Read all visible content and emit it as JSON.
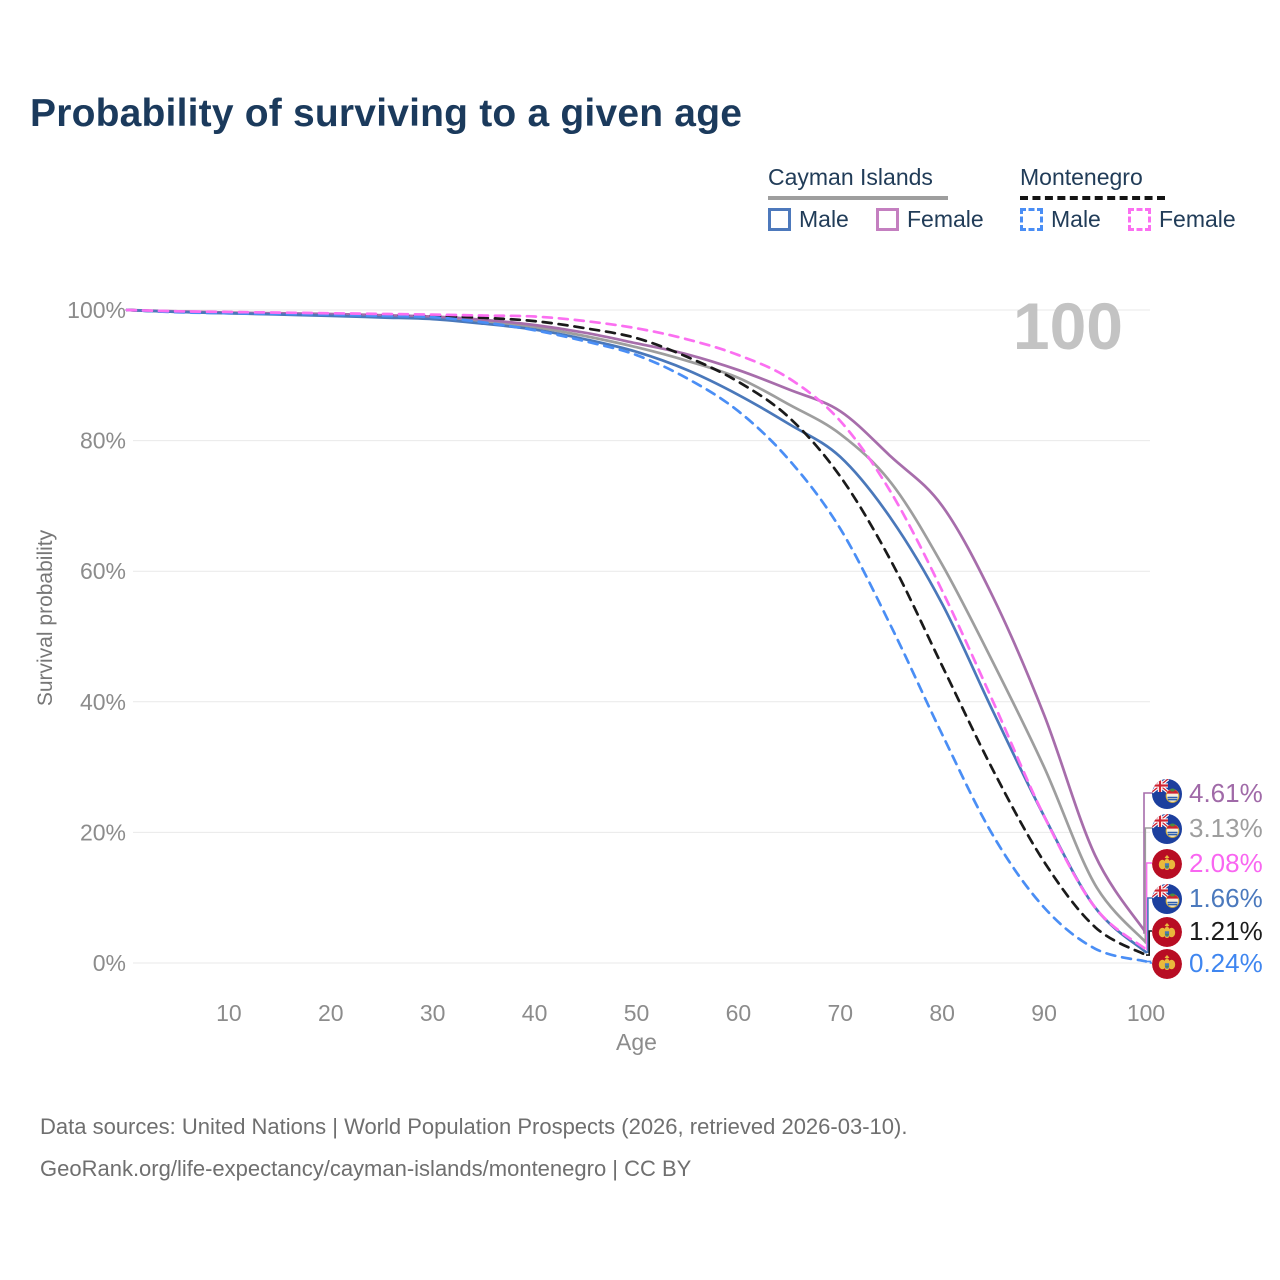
{
  "title": "Probability of surviving to a given age",
  "watermark": "100",
  "legend": {
    "groups": [
      {
        "name": "Cayman Islands",
        "line_style": "solid",
        "underline_color": "#9e9e9e",
        "items": [
          {
            "label": "Male",
            "color": "#4d79bc"
          },
          {
            "label": "Female",
            "color": "#c47fc0"
          }
        ]
      },
      {
        "name": "Montenegro",
        "line_style": "dashed",
        "underline_color": "#141414",
        "items": [
          {
            "label": "Male",
            "color": "#4a8ef5"
          },
          {
            "label": "Female",
            "color": "#fb6ff1"
          }
        ]
      }
    ]
  },
  "chart_data": {
    "type": "line",
    "title": "Probability of surviving to a given age",
    "xlabel": "Age",
    "ylabel": "Survival probability",
    "xlim": [
      0,
      100
    ],
    "ylim": [
      0,
      100
    ],
    "x_ticks": [
      10,
      20,
      30,
      40,
      50,
      60,
      70,
      80,
      90,
      100
    ],
    "y_ticks": [
      0,
      20,
      40,
      60,
      80,
      100
    ],
    "y_tick_suffix": "%",
    "grid": "horizontal",
    "legend_position": "top-right",
    "hover_age": "100",
    "x": [
      0,
      5,
      10,
      15,
      20,
      25,
      30,
      35,
      40,
      45,
      50,
      55,
      60,
      65,
      70,
      75,
      80,
      85,
      90,
      95,
      100
    ],
    "series": [
      {
        "name": "Cayman Islands — Female",
        "country": "Cayman Islands",
        "sex": "Female",
        "color": "#a76dab",
        "label_color": "#a06aa8",
        "dash": false,
        "flag": "cayman-islands",
        "end_label": "4.61%",
        "end_value": 4.61,
        "values": [
          100,
          99.8,
          99.6,
          99.5,
          99.4,
          99.2,
          99.0,
          98.5,
          97.7,
          96.5,
          94.9,
          93.2,
          90.8,
          87.8,
          84.5,
          77.5,
          70,
          56,
          38,
          16.5,
          4.61
        ]
      },
      {
        "name": "Cayman Islands — Both sexes",
        "country": "Cayman Islands",
        "sex": "Both",
        "color": "#9e9e9e",
        "label_color": "#9e9e9e",
        "dash": false,
        "flag": "cayman-islands",
        "end_label": "3.13%",
        "end_value": 3.13,
        "values": [
          100,
          99.7,
          99.5,
          99.35,
          99.2,
          99.0,
          98.8,
          98.2,
          97.4,
          96.0,
          94.3,
          92.2,
          89.6,
          85.5,
          81,
          73.5,
          61,
          46,
          30,
          12,
          3.13
        ]
      },
      {
        "name": "Montenegro — Female",
        "country": "Montenegro",
        "sex": "Female",
        "color": "#fb6ff1",
        "label_color": "#f966f1",
        "dash": true,
        "flag": "montenegro",
        "end_label": "2.08%",
        "end_value": 2.08,
        "values": [
          100,
          99.8,
          99.7,
          99.6,
          99.5,
          99.4,
          99.3,
          99.15,
          99.0,
          98.3,
          97.2,
          95.5,
          93.1,
          89.5,
          83,
          72,
          57,
          40,
          22.5,
          8.5,
          2.08
        ]
      },
      {
        "name": "Cayman Islands — Male",
        "country": "Cayman Islands",
        "sex": "Male",
        "color": "#4a78ba",
        "label_color": "#4b79bd",
        "dash": false,
        "flag": "cayman-islands",
        "end_label": "1.66%",
        "end_value": 1.66,
        "values": [
          100,
          99.7,
          99.5,
          99.3,
          99.1,
          98.85,
          98.6,
          97.9,
          97.0,
          95.5,
          93.6,
          90.8,
          87,
          82.5,
          77.5,
          68,
          55,
          38.5,
          22.5,
          8.5,
          1.66
        ]
      },
      {
        "name": "Montenegro — Both sexes",
        "country": "Montenegro",
        "sex": "Both",
        "color": "#1a1a1a",
        "label_color": "#1c1c1c",
        "dash": true,
        "flag": "montenegro",
        "end_label": "1.21%",
        "end_value": 1.21,
        "values": [
          100,
          99.7,
          99.6,
          99.5,
          99.4,
          99.25,
          99.1,
          98.8,
          98.3,
          97.2,
          95.7,
          92.8,
          89,
          83.5,
          74.5,
          61.5,
          45.5,
          29.5,
          15.5,
          5.5,
          1.21
        ]
      },
      {
        "name": "Montenegro — Male",
        "country": "Montenegro",
        "sex": "Male",
        "color": "#4a8ef5",
        "label_color": "#3f86f0",
        "dash": true,
        "flag": "montenegro",
        "end_label": "0.24%",
        "end_value": 0.24,
        "values": [
          100,
          99.65,
          99.5,
          99.4,
          99.3,
          99.1,
          98.9,
          98.1,
          96.9,
          95.2,
          93.1,
          89.5,
          84.5,
          77,
          66.5,
          51.5,
          35,
          19.5,
          8.5,
          2.2,
          0.24
        ]
      }
    ]
  },
  "footer": {
    "line1": "Data sources: United Nations | World Population Prospects (2026, retrieved 2026-03-10).",
    "line2": "GeoRank.org/life-expectancy/cayman-islands/montenegro | CC BY"
  }
}
